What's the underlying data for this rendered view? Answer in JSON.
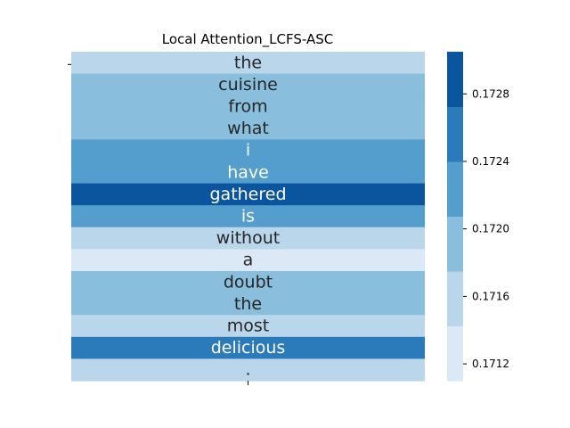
{
  "chart_data": {
    "type": "heatmap",
    "title": "Local Attention_LCFS-ASC",
    "rows": [
      {
        "token": "the",
        "value": 0.1716
      },
      {
        "token": "cuisine",
        "value": 0.1719
      },
      {
        "token": "from",
        "value": 0.1719
      },
      {
        "token": "what",
        "value": 0.1719
      },
      {
        "token": "i",
        "value": 0.1722
      },
      {
        "token": "have",
        "value": 0.1722
      },
      {
        "token": "gathered",
        "value": 0.1729
      },
      {
        "token": "is",
        "value": 0.1722
      },
      {
        "token": "without",
        "value": 0.1716
      },
      {
        "token": "a",
        "value": 0.1713
      },
      {
        "token": "doubt",
        "value": 0.1719
      },
      {
        "token": "the",
        "value": 0.1719
      },
      {
        "token": "most",
        "value": 0.1716
      },
      {
        "token": "delicious",
        "value": 0.1726
      },
      {
        "token": ".",
        "value": 0.1716
      }
    ],
    "colorbar": {
      "vmin": 0.1711,
      "vmax": 0.17305,
      "ticks": [
        0.1712,
        0.1716,
        0.172,
        0.1724,
        0.1728
      ],
      "tick_labels": [
        "0.1712",
        "0.1716",
        "0.1720",
        "0.1724",
        "0.1728"
      ],
      "levels": [
        "#dbe9f6",
        "#bad6eb",
        "#89bedc",
        "#539ecd",
        "#2b7bba",
        "#0b559f"
      ]
    },
    "x_tick_labels": [
      ""
    ],
    "y_tick_labels": [
      ""
    ]
  }
}
